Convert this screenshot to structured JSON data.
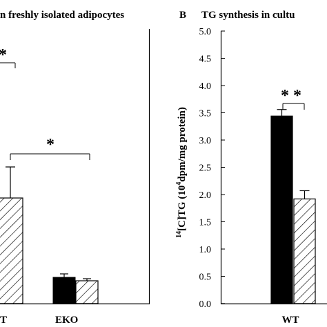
{
  "panels": [
    {
      "letter": "",
      "title": "n freshly isolated adipocytes",
      "categories": [
        "T",
        "EKO"
      ]
    },
    {
      "letter": "B",
      "title": "TG synthesis in cultu",
      "ylabel_parts": [
        "14",
        "[C]TG (10",
        "4",
        "dpm/mg protein)"
      ],
      "yticks": [
        "0.0",
        "0.5",
        "1.0",
        "1.5",
        "2.0",
        "2.5",
        "3.0",
        "3.5",
        "4.0",
        "4.5",
        "5.0"
      ],
      "categories": [
        "WT"
      ]
    }
  ],
  "chart_data": [
    {
      "type": "bar",
      "title": "",
      "categories": [
        "T",
        "EKO"
      ],
      "series": [
        {
          "pattern": "solid",
          "values": [
            null,
            0.6
          ],
          "errors": [
            null,
            0.05
          ]
        },
        {
          "pattern": "hatched",
          "values": [
            3.3,
            0.5
          ],
          "errors": [
            1.0,
            0.04
          ]
        }
      ],
      "annotations": [
        {
          "text": "*",
          "comparison": "partially visible bracket (left, top)"
        },
        {
          "text": "*",
          "comparison": "T hatched vs EKO"
        }
      ]
    },
    {
      "type": "bar",
      "title": "TG synthesis in cultu",
      "ylabel": "14[C]TG (10^4 dpm/mg protein)",
      "ylim": [
        0,
        5
      ],
      "categories": [
        "WT"
      ],
      "series": [
        {
          "pattern": "solid",
          "values": [
            3.44
          ],
          "errors": [
            0.12
          ]
        },
        {
          "pattern": "hatched",
          "values": [
            1.92
          ],
          "errors": [
            0.15
          ]
        }
      ],
      "annotations": [
        {
          "text": "**",
          "comparison": "WT solid vs WT hatched"
        }
      ]
    }
  ]
}
